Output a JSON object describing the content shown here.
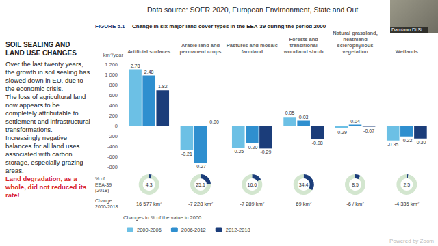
{
  "slide": {
    "source": "Data source: SOER 2020, European Envirnonment, State and Out",
    "heading": "SOIL SEALING AND\nLAND USE CHANGES",
    "body": [
      "Over the last twenty years, the growth in soil sealing has slowed down in EU, due to the economic crisis.",
      "The loss of agricultural land now appears to be completely attributable to settlement and infrastructural transformations.",
      "Increasingly negative balances for all land uses associated with carbon storage, especially grazing areas."
    ],
    "highlight": "Land degradation, as a whole, did not reduced its rate!",
    "presenter": "Damiano Di Si...",
    "watermark": "Powered by Zoom"
  },
  "chart_data": {
    "type": "bar",
    "figure": "FIGURE 5.1",
    "title": "Change in six major land cover types in the EEA-39 during the period 2000",
    "y_label": "km²/year",
    "categories": [
      "Artificial surfaces",
      "Arable land and\npermanent crops",
      "Pastures and mosaic\nfarmland",
      "Forests and\ntransitional\nwoodland shrub",
      "Natural grassland,\nheathland\nsclerophyllous\nvegetation",
      "Wetlands"
    ],
    "series": [
      {
        "name": "2000-2006",
        "color": "#6cc0e5",
        "values": [
          1100,
          -480,
          -430,
          170,
          -50,
          -290
        ],
        "pct_labels": [
          "2.78",
          "-0.21",
          "-0.25",
          "0.05",
          "-0.29",
          "-0.35"
        ]
      },
      {
        "name": "2006-2012",
        "color": "#2f8fcf",
        "values": [
          980,
          -720,
          -340,
          100,
          20,
          -210
        ],
        "pct_labels": [
          "2.48",
          "-0.27",
          "-0.20",
          "0.03",
          "0.04",
          "-0.22"
        ]
      },
      {
        "name": "2012-2018",
        "color": "#1b3d7a",
        "values": [
          690,
          0,
          -445,
          -260,
          -20,
          -250
        ],
        "pct_labels": [
          "1.82",
          "0.00",
          "-0.29",
          "-0.08",
          "-0.07",
          "-0.30"
        ]
      }
    ],
    "ylim": [
      -800,
      1200
    ],
    "yticks": [
      -800,
      -600,
      -400,
      -200,
      0,
      200,
      400,
      600,
      800,
      {
        "value": 1000,
        "label": "1 000"
      },
      {
        "value": 1200,
        "label": "1 200"
      }
    ],
    "grid": false,
    "legend": "lower left",
    "legend_title": "Changes in % of the value in 2000",
    "share_label": "% of\nEEA-39\n(2018)",
    "share_2018": [
      4.3,
      25.1,
      16.6,
      34.4,
      8.5,
      2.5
    ],
    "change_label": "Change\n2000-2018",
    "change_2000_2018": [
      "16 577 km²",
      "-7 228 km²",
      "-7 289 km²",
      "69 km²",
      "-6 / km²",
      "-4 335 km²"
    ]
  }
}
